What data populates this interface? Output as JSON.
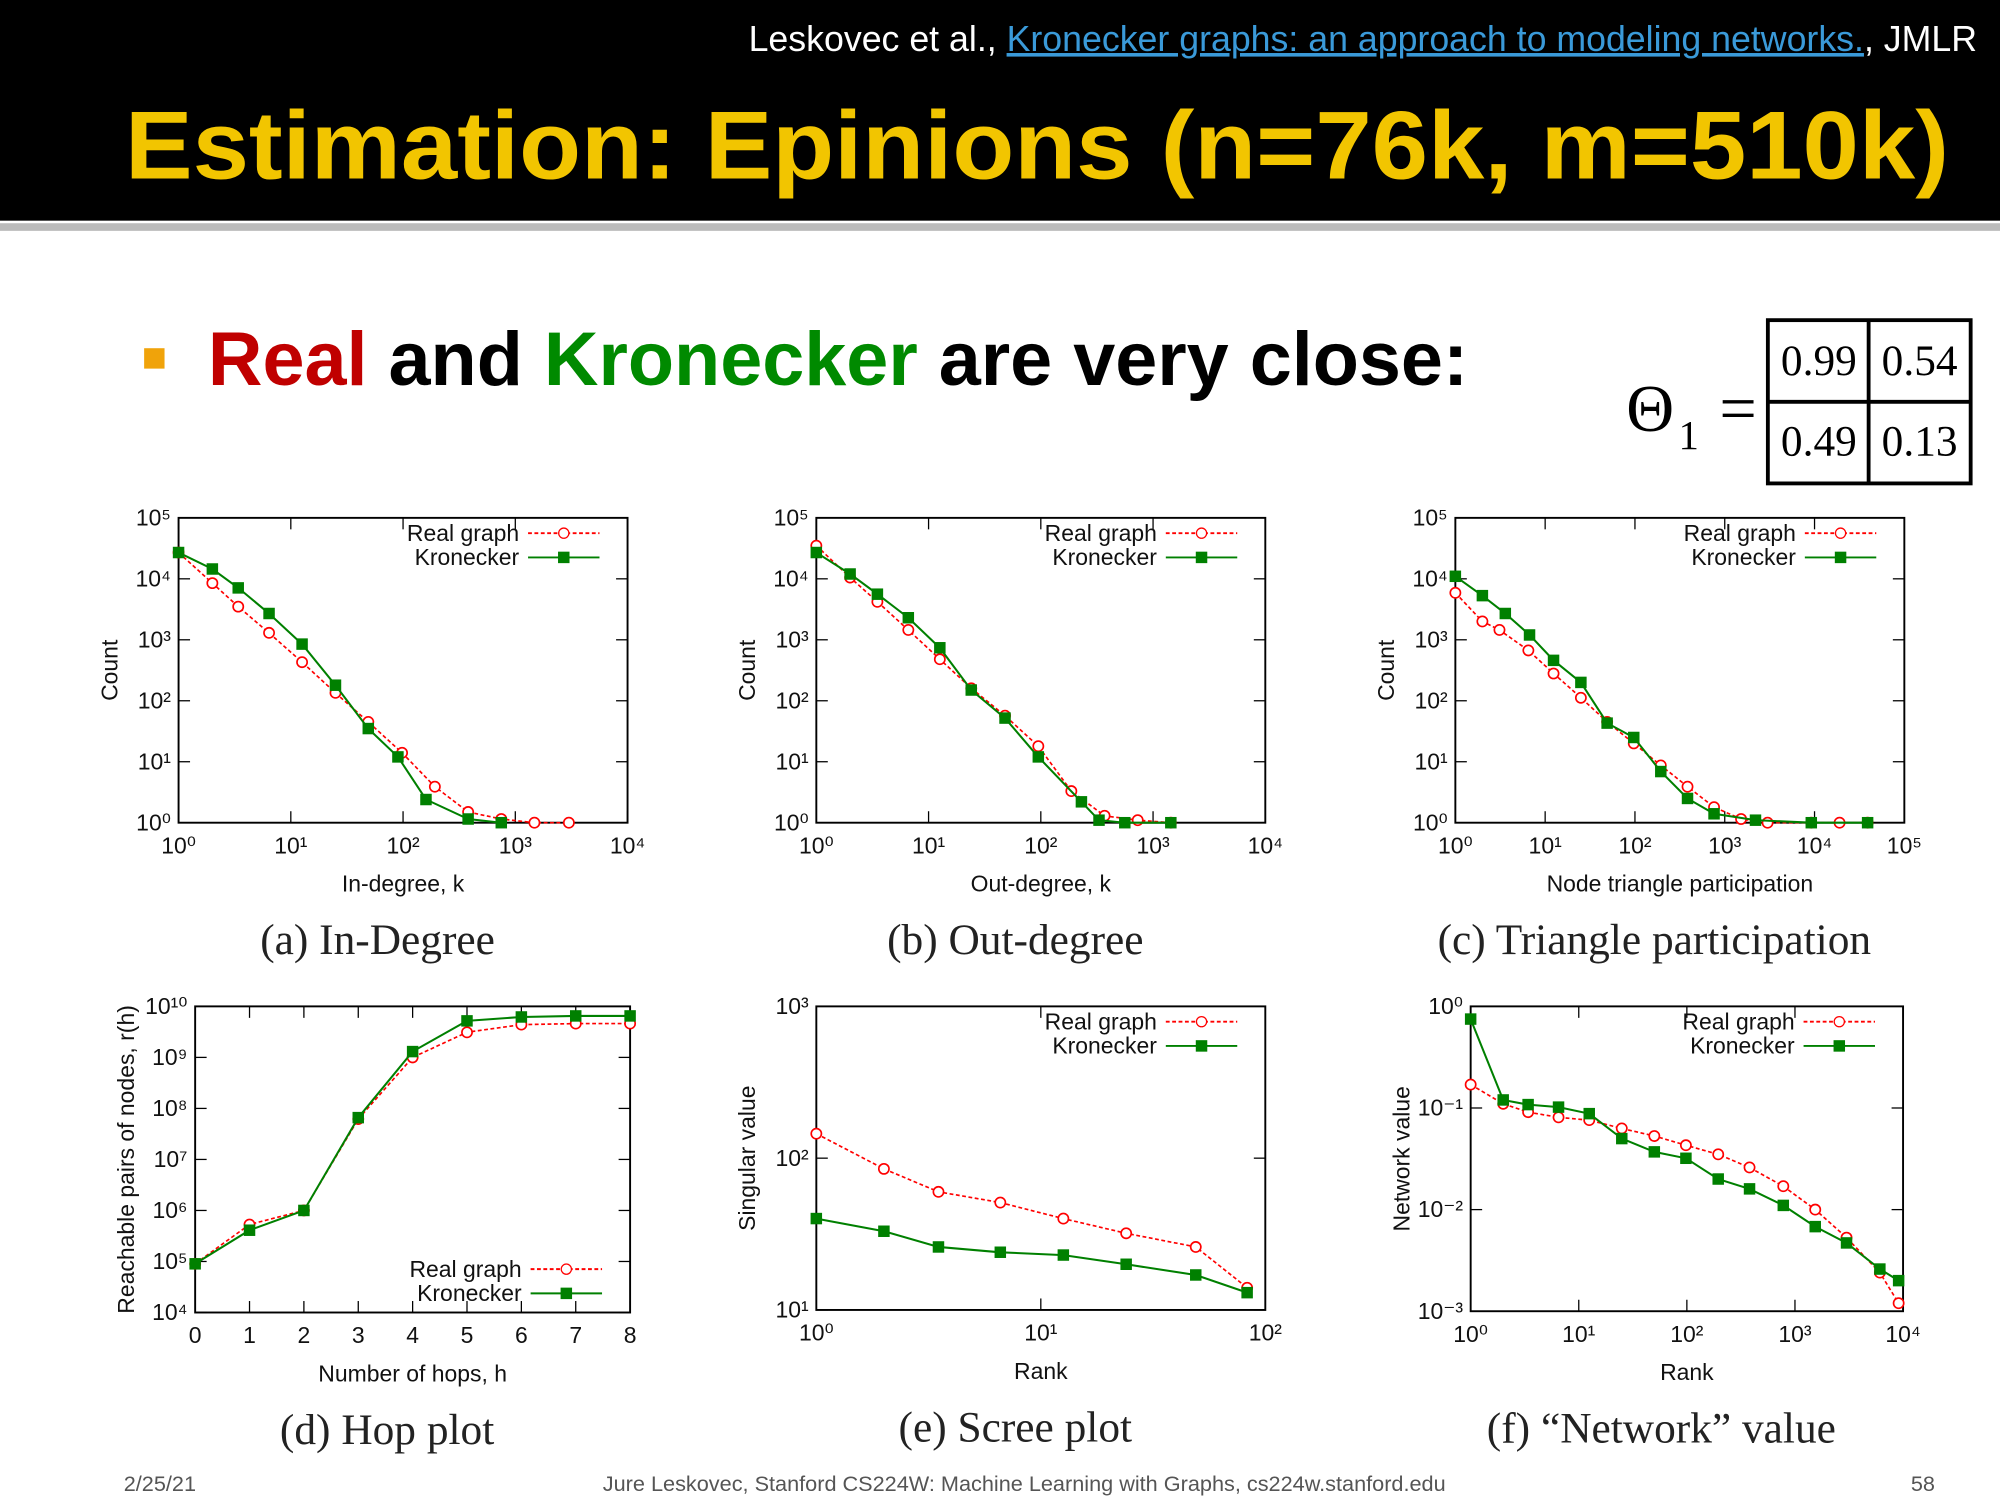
{
  "header": {
    "citation_prefix": "Leskovec et al.,",
    "citation_link": "Kronecker graphs: an approach to modeling networks.",
    "citation_suffix": ", JMLR",
    "title": "Estimation: Epinions (n=76k, m=510k)"
  },
  "bullet": {
    "parts": [
      "Real",
      "and",
      "Kronecker",
      "are very close:"
    ]
  },
  "matrix": {
    "symbol": "Θ",
    "subscript": "1",
    "equals": "=",
    "rows": [
      [
        0.99,
        0.54
      ],
      [
        0.49,
        0.13
      ]
    ]
  },
  "chart_data": [
    {
      "type": "line",
      "caption": "(a) In-Degree",
      "xlabel": "In-degree, k",
      "ylabel": "Count",
      "xscale": "log",
      "yscale": "log",
      "legend": "upper right",
      "xlim": [
        1,
        10000
      ],
      "ylim": [
        1,
        100000
      ],
      "xticks": [
        {
          "value": 1,
          "label": "10⁰"
        },
        {
          "value": 10,
          "label": "10¹"
        },
        {
          "value": 100,
          "label": "10²"
        },
        {
          "value": 1000,
          "label": "10³"
        },
        {
          "value": 10000,
          "label": "10⁴"
        }
      ],
      "yticks": [
        {
          "value": 1,
          "label": "10⁰"
        },
        {
          "value": 10,
          "label": "10¹"
        },
        {
          "value": 100,
          "label": "10²"
        },
        {
          "value": 1000,
          "label": "10³"
        },
        {
          "value": 10000,
          "label": "10⁴"
        },
        {
          "value": 100000,
          "label": "10⁵"
        }
      ],
      "series": [
        {
          "name": "Real graph",
          "color": "#ff0000",
          "x": [
            1,
            2,
            3.4,
            6.4,
            12.6,
            25,
            49,
            98,
            192,
            380,
            750,
            1480,
            3000
          ],
          "values": [
            27000,
            8500,
            3500,
            1300,
            430,
            135,
            45,
            14,
            3.9,
            1.5,
            1.15,
            1,
            1
          ]
        },
        {
          "name": "Kronecker",
          "color": "#008000",
          "x": [
            1,
            2,
            3.4,
            6.4,
            12.6,
            25,
            49,
            90,
            160,
            380,
            750
          ],
          "values": [
            27000,
            14500,
            7100,
            2700,
            850,
            180,
            35,
            12,
            2.4,
            1.15,
            1
          ]
        }
      ]
    },
    {
      "type": "line",
      "caption": "(b) Out-degree",
      "xlabel": "Out-degree, k",
      "ylabel": "Count",
      "xscale": "log",
      "yscale": "log",
      "legend": "upper right",
      "xlim": [
        1,
        10000
      ],
      "ylim": [
        1,
        100000
      ],
      "xticks": [
        {
          "value": 1,
          "label": "10⁰"
        },
        {
          "value": 10,
          "label": "10¹"
        },
        {
          "value": 100,
          "label": "10²"
        },
        {
          "value": 1000,
          "label": "10³"
        },
        {
          "value": 10000,
          "label": "10⁴"
        }
      ],
      "yticks": [
        {
          "value": 1,
          "label": "10⁰"
        },
        {
          "value": 10,
          "label": "10¹"
        },
        {
          "value": 100,
          "label": "10²"
        },
        {
          "value": 1000,
          "label": "10³"
        },
        {
          "value": 10000,
          "label": "10⁴"
        },
        {
          "value": 100000,
          "label": "10⁵"
        }
      ],
      "series": [
        {
          "name": "Real graph",
          "color": "#ff0000",
          "x": [
            1,
            2,
            3.5,
            6.6,
            12.6,
            24,
            48,
            95,
            187,
            370,
            730,
            1440
          ],
          "values": [
            35000,
            10500,
            4200,
            1450,
            480,
            160,
            57,
            18,
            3.3,
            1.3,
            1.1,
            1
          ]
        },
        {
          "name": "Kronecker",
          "color": "#008000",
          "x": [
            1,
            2,
            3.5,
            6.6,
            12.6,
            24,
            48,
            95,
            230,
            330,
            560,
            1440
          ],
          "values": [
            27000,
            12000,
            5600,
            2300,
            740,
            150,
            52,
            12,
            2.2,
            1.1,
            1,
            1
          ]
        }
      ]
    },
    {
      "type": "line",
      "caption": "(c) Triangle participation",
      "xlabel": "Node triangle participation",
      "ylabel": "Count",
      "xscale": "log",
      "yscale": "log",
      "legend": "upper right",
      "xlim": [
        1,
        100000
      ],
      "ylim": [
        1,
        100000
      ],
      "xticks": [
        {
          "value": 1,
          "label": "10⁰"
        },
        {
          "value": 10,
          "label": "10¹"
        },
        {
          "value": 100,
          "label": "10²"
        },
        {
          "value": 1000,
          "label": "10³"
        },
        {
          "value": 10000,
          "label": "10⁴"
        },
        {
          "value": 100000,
          "label": "10⁵"
        }
      ],
      "yticks": [
        {
          "value": 1,
          "label": "10⁰"
        },
        {
          "value": 10,
          "label": "10¹"
        },
        {
          "value": 100,
          "label": "10²"
        },
        {
          "value": 1000,
          "label": "10³"
        },
        {
          "value": 10000,
          "label": "10⁴"
        },
        {
          "value": 100000,
          "label": "10⁵"
        }
      ],
      "series": [
        {
          "name": "Real graph",
          "color": "#ff0000",
          "x": [
            1,
            2,
            3.1,
            6.5,
            12.4,
            25,
            49,
            97,
            194,
            385,
            760,
            1520,
            3000,
            9200,
            19000,
            39000
          ],
          "values": [
            5900,
            2000,
            1450,
            670,
            280,
            112,
            45,
            20,
            8.7,
            3.9,
            1.8,
            1.15,
            1,
            1,
            1,
            1
          ]
        },
        {
          "name": "Kronecker",
          "color": "#008000",
          "x": [
            1,
            2,
            3.6,
            6.7,
            12.4,
            25,
            49,
            97,
            194,
            385,
            760,
            2200,
            9200,
            39000
          ],
          "values": [
            11000,
            5300,
            2700,
            1200,
            460,
            200,
            43,
            25,
            6.9,
            2.5,
            1.4,
            1.1,
            1,
            1
          ]
        }
      ]
    },
    {
      "type": "line",
      "caption": "(d) Hop plot",
      "xlabel": "Number of hops, h",
      "ylabel": "Reachable pairs of nodes, r(h)",
      "xscale": "linear",
      "yscale": "log",
      "legend": "lower right",
      "xlim": [
        0,
        8
      ],
      "ylim": [
        10000,
        10000000000
      ],
      "xticks": [
        0,
        1,
        2,
        3,
        4,
        5,
        6,
        7,
        8
      ],
      "yticks": [
        {
          "value": 10000,
          "label": "10⁴"
        },
        {
          "value": 100000,
          "label": "10⁵"
        },
        {
          "value": 1000000,
          "label": "10⁶"
        },
        {
          "value": 10000000,
          "label": "10⁷"
        },
        {
          "value": 100000000,
          "label": "10⁸"
        },
        {
          "value": 1000000000,
          "label": "10⁹"
        },
        {
          "value": 10000000000,
          "label": "10¹⁰"
        }
      ],
      "series": [
        {
          "name": "Real graph",
          "color": "#ff0000",
          "x": [
            0,
            1,
            2,
            3,
            4,
            5,
            6,
            7,
            8
          ],
          "values": [
            90000,
            530000,
            1000000,
            62000000,
            1000000000,
            3100000000,
            4400000000,
            4600000000,
            4600000000
          ]
        },
        {
          "name": "Kronecker",
          "color": "#008000",
          "x": [
            0,
            1,
            2,
            3,
            4,
            5,
            6,
            7,
            8
          ],
          "values": [
            90000,
            410000,
            1000000,
            66000000,
            1300000000,
            5200000000,
            6200000000,
            6500000000,
            6500000000
          ]
        }
      ]
    },
    {
      "type": "line",
      "caption": "(e) Scree plot",
      "xlabel": "Rank",
      "ylabel": "Singular value",
      "xscale": "log",
      "yscale": "log",
      "legend": "upper right",
      "xlim": [
        1,
        100
      ],
      "ylim": [
        10,
        1000
      ],
      "xticks": [
        {
          "value": 1,
          "label": "10⁰"
        },
        {
          "value": 10,
          "label": "10¹"
        },
        {
          "value": 100,
          "label": "10²"
        }
      ],
      "yticks": [
        {
          "value": 10,
          "label": "10¹"
        },
        {
          "value": 100,
          "label": "10²"
        },
        {
          "value": 1000,
          "label": "10³"
        }
      ],
      "series": [
        {
          "name": "Real graph",
          "color": "#ff0000",
          "x": [
            1,
            2,
            3.5,
            6.6,
            12.6,
            24,
            49,
            83
          ],
          "values": [
            145,
            85,
            60,
            51,
            40,
            32,
            26,
            14
          ]
        },
        {
          "name": "Kronecker",
          "color": "#008000",
          "x": [
            1,
            2,
            3.5,
            6.6,
            12.6,
            24,
            49,
            83
          ],
          "values": [
            40,
            33,
            26,
            24,
            23,
            20,
            17,
            13
          ]
        }
      ]
    },
    {
      "type": "line",
      "caption": "(f) “Network” value",
      "xlabel": "Rank",
      "ylabel": "Network value",
      "xscale": "log",
      "yscale": "log",
      "legend": "upper right",
      "xlim": [
        1,
        10000
      ],
      "ylim": [
        0.001,
        1
      ],
      "xticks": [
        {
          "value": 1,
          "label": "10⁰"
        },
        {
          "value": 10,
          "label": "10¹"
        },
        {
          "value": 100,
          "label": "10²"
        },
        {
          "value": 1000,
          "label": "10³"
        },
        {
          "value": 10000,
          "label": "10⁴"
        }
      ],
      "yticks": [
        {
          "value": 0.001,
          "label": "10⁻³"
        },
        {
          "value": 0.01,
          "label": "10⁻²"
        },
        {
          "value": 0.1,
          "label": "10⁻¹"
        },
        {
          "value": 1,
          "label": "10⁰"
        }
      ],
      "series": [
        {
          "name": "Real graph",
          "color": "#ff0000",
          "x": [
            1,
            2,
            3.4,
            6.5,
            12.5,
            25,
            50,
            98,
            195,
            380,
            780,
            1540,
            3000,
            6100,
            9100
          ],
          "values": [
            0.17,
            0.11,
            0.091,
            0.081,
            0.076,
            0.063,
            0.053,
            0.043,
            0.035,
            0.026,
            0.017,
            0.01,
            0.0053,
            0.0024,
            0.0012
          ]
        },
        {
          "name": "Kronecker",
          "color": "#008000",
          "x": [
            1,
            2,
            3.4,
            6.5,
            12.5,
            25,
            50,
            98,
            195,
            380,
            780,
            1540,
            3000,
            6100,
            9100
          ],
          "values": [
            0.75,
            0.12,
            0.108,
            0.102,
            0.088,
            0.05,
            0.037,
            0.032,
            0.02,
            0.016,
            0.011,
            0.0068,
            0.0047,
            0.0026,
            0.002
          ]
        }
      ]
    }
  ],
  "footer": {
    "date": "2/25/21",
    "text": "Jure Leskovec, Stanford CS224W: Machine Learning with Graphs, cs224w.stanford.edu",
    "page": 58
  }
}
